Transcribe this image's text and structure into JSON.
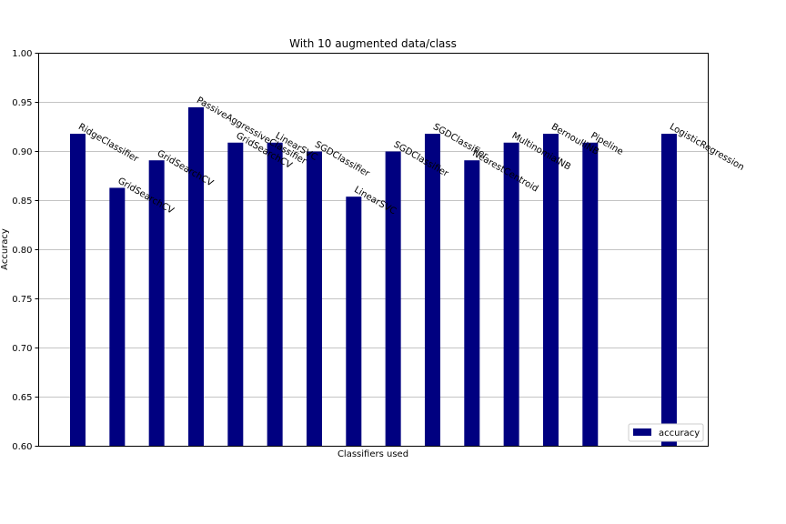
{
  "chart_data": {
    "type": "bar",
    "title": "With 10 augmented data/class",
    "xlabel": "Classifiers used",
    "ylabel": "Accuracy",
    "ylim": [
      0.6,
      1.0
    ],
    "yticks": [
      "0.60",
      "0.65",
      "0.70",
      "0.75",
      "0.80",
      "0.85",
      "0.90",
      "0.95",
      "1.00"
    ],
    "grid": true,
    "bar_color": "#000080",
    "legend": {
      "location": "lower-right",
      "label": "accuracy"
    },
    "categories": [
      "RidgeClassifier",
      "GridSearchCV",
      "GridSearchCV",
      "PassiveAggressiveClassifier",
      "GridSearchCV",
      "LinearSVC",
      "SGDClassifier",
      "LinearSVC",
      "SGDClassifier",
      "SGDClassifier",
      "NearestCentroid",
      "MultinomialNB",
      "BernoulliNB",
      "Pipeline",
      "",
      "LogisticRegression"
    ],
    "values": [
      0.918,
      0.863,
      0.891,
      0.945,
      0.909,
      0.909,
      0.9,
      0.854,
      0.9,
      0.918,
      0.891,
      0.909,
      0.918,
      0.909,
      null,
      0.918
    ]
  }
}
